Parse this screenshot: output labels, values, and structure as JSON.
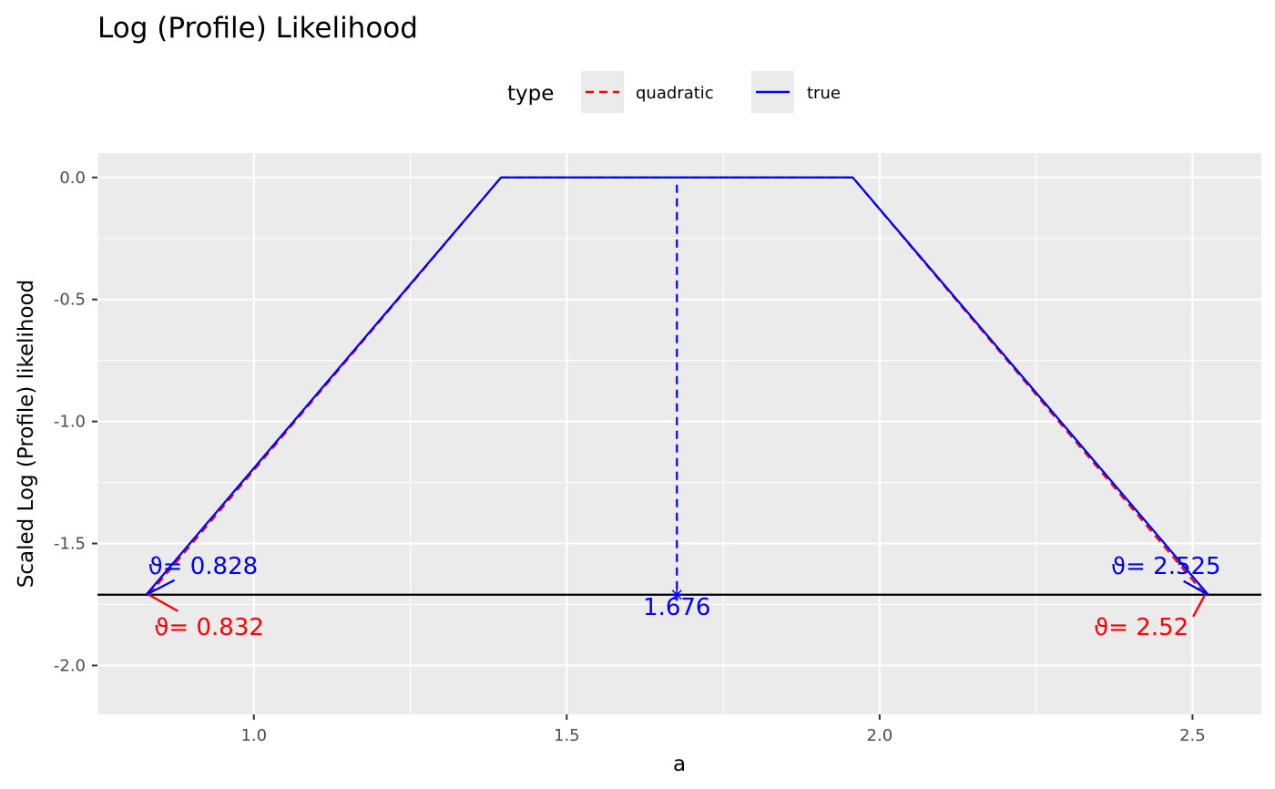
{
  "chart_data": {
    "type": "line",
    "title": "Log (Profile) Likelihood",
    "xlabel": "a",
    "ylabel": "Scaled Log (Profile) likelihood",
    "xlim": [
      0.75,
      2.61
    ],
    "ylim": [
      -2.2,
      0.1
    ],
    "x_ticks": [
      1.0,
      1.5,
      2.0,
      2.5
    ],
    "x_tick_labels": [
      "1.0",
      "1.5",
      "2.0",
      "2.5"
    ],
    "y_ticks": [
      0.0,
      -0.5,
      -1.0,
      -1.5,
      -2.0
    ],
    "y_tick_labels": [
      "0.0",
      "-0.5",
      "-1.0",
      "-1.5",
      "-2.0"
    ],
    "grid": true,
    "legend": {
      "title": "type",
      "position": "top",
      "entries": [
        {
          "label": "quadratic",
          "color": "#ff0000",
          "linetype": "dashed"
        },
        {
          "label": "true",
          "color": "#0000ff",
          "linetype": "solid"
        }
      ]
    },
    "series": [
      {
        "name": "quadratic",
        "color": "#ff0000",
        "linetype": "dashed",
        "x": [
          0.832,
          1.395,
          1.957,
          2.52
        ],
        "y": [
          -1.71,
          0.0,
          0.0,
          -1.71
        ]
      },
      {
        "name": "true",
        "color": "#0000ff",
        "linetype": "solid",
        "x": [
          0.828,
          1.395,
          1.957,
          2.525
        ],
        "y": [
          -1.71,
          0.0,
          0.0,
          -1.71
        ]
      }
    ],
    "cutoff_line": {
      "y": -1.71,
      "color": "#000000"
    },
    "mle_marker": {
      "x": 1.676,
      "label": "1.676",
      "color": "#0000ff"
    },
    "annotations": [
      {
        "text": "ϑ= 0.828",
        "color": "#0000ff"
      },
      {
        "text": "ϑ= 0.832",
        "color": "#ff0000"
      },
      {
        "text": "ϑ= 2.525",
        "color": "#0000ff"
      },
      {
        "text": "ϑ= 2.52",
        "color": "#ff0000"
      }
    ]
  }
}
